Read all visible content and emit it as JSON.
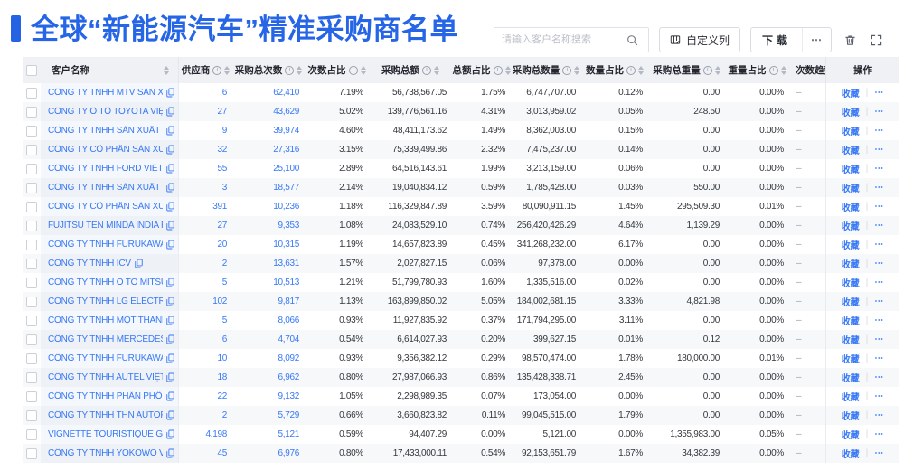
{
  "header": {
    "title": "全球“新能源汽车”精准采购商名单"
  },
  "toolbar": {
    "search_placeholder": "请输入客户名称搜索",
    "customize_columns_label": "自定义列",
    "download_label": "下载",
    "more_label": "⋯"
  },
  "colors": {
    "accent": "#2363e4",
    "link": "#3778f6"
  },
  "table": {
    "columns": [
      {
        "key": "select",
        "type": "checkbox",
        "label": ""
      },
      {
        "key": "customer-name",
        "label": "客户名称",
        "info": false,
        "sort": true
      },
      {
        "key": "suppliers",
        "label": "供应商",
        "info": true,
        "sort": true
      },
      {
        "key": "purchase-count",
        "label": "采购总次数",
        "info": true,
        "sort": true
      },
      {
        "key": "count-pct",
        "label": "次数占比",
        "info": true,
        "sort": true
      },
      {
        "key": "purchase-amount",
        "label": "采购总额",
        "info": true,
        "sort": true
      },
      {
        "key": "amount-pct",
        "label": "总额占比",
        "info": true,
        "sort": true
      },
      {
        "key": "purchase-qty",
        "label": "采购总数量",
        "info": true,
        "sort": true
      },
      {
        "key": "qty-pct",
        "label": "数量占比",
        "info": true,
        "sort": true
      },
      {
        "key": "purchase-weight",
        "label": "采购总重量",
        "info": true,
        "sort": true
      },
      {
        "key": "weight-pct",
        "label": "重量占比",
        "info": true,
        "sort": true
      },
      {
        "key": "count-trend",
        "label": "次数趋势",
        "info": false,
        "sort": false
      },
      {
        "key": "operations",
        "label": "操作",
        "info": false,
        "sort": false
      }
    ],
    "row_actions": {
      "favorite": "收藏",
      "separator": "|",
      "more": "⋯"
    },
    "rows": [
      {
        "name": "CÔNG TY TNHH MTV SẢN XUẤ...",
        "suppliers": "6",
        "purchase_count": "62,410",
        "count_pct": "7.19%",
        "purchase_amount": "56,738,567.05",
        "amount_pct": "1.75%",
        "purchase_qty": "6,747,707.00",
        "qty_pct": "0.12%",
        "purchase_weight": "0.00",
        "weight_pct": "0.00%",
        "trend": "–"
      },
      {
        "name": "CÔNG TY Ô TÔ TOYOTA VIỆT ...",
        "suppliers": "27",
        "purchase_count": "43,629",
        "count_pct": "5.02%",
        "purchase_amount": "139,776,561.16",
        "amount_pct": "4.31%",
        "purchase_qty": "3,013,959.02",
        "qty_pct": "0.05%",
        "purchase_weight": "248.50",
        "weight_pct": "0.00%",
        "trend": "–"
      },
      {
        "name": "CÔNG TY TNHH SẢN XUẤT VÀ ...",
        "suppliers": "9",
        "purchase_count": "39,974",
        "count_pct": "4.60%",
        "purchase_amount": "48,411,173.62",
        "amount_pct": "1.49%",
        "purchase_qty": "8,362,003.00",
        "qty_pct": "0.15%",
        "purchase_weight": "0.00",
        "weight_pct": "0.00%",
        "trend": "–"
      },
      {
        "name": "CÔNG TY CỔ PHẦN SẢN XUẤT...",
        "suppliers": "32",
        "purchase_count": "27,316",
        "count_pct": "3.15%",
        "purchase_amount": "75,339,499.86",
        "amount_pct": "2.32%",
        "purchase_qty": "7,475,237.00",
        "qty_pct": "0.14%",
        "purchase_weight": "0.00",
        "weight_pct": "0.00%",
        "trend": "–"
      },
      {
        "name": "CÔNG TY TNHH FORD VIỆT NAM",
        "suppliers": "55",
        "purchase_count": "25,100",
        "count_pct": "2.89%",
        "purchase_amount": "64,516,143.61",
        "amount_pct": "1.99%",
        "purchase_qty": "3,213,159.00",
        "qty_pct": "0.06%",
        "purchase_weight": "0.00",
        "weight_pct": "0.00%",
        "trend": "–"
      },
      {
        "name": "CÔNG TY TNHH SẢN XUẤT VÀ ...",
        "suppliers": "3",
        "purchase_count": "18,577",
        "count_pct": "2.14%",
        "purchase_amount": "19,040,834.12",
        "amount_pct": "0.59%",
        "purchase_qty": "1,785,428.00",
        "qty_pct": "0.03%",
        "purchase_weight": "550.00",
        "weight_pct": "0.00%",
        "trend": "–"
      },
      {
        "name": "CÔNG TY CỔ PHẦN SẢN XUẤT...",
        "suppliers": "391",
        "purchase_count": "10,236",
        "count_pct": "1.18%",
        "purchase_amount": "116,329,847.89",
        "amount_pct": "3.59%",
        "purchase_qty": "80,090,911.15",
        "qty_pct": "1.45%",
        "purchase_weight": "295,509.30",
        "weight_pct": "0.01%",
        "trend": "–"
      },
      {
        "name": "FUJITSU TEN MINDA INDIA PVT...",
        "suppliers": "27",
        "purchase_count": "9,353",
        "count_pct": "1.08%",
        "purchase_amount": "24,083,529.10",
        "amount_pct": "0.74%",
        "purchase_qty": "256,420,426.29",
        "qty_pct": "4.64%",
        "purchase_weight": "1,139.29",
        "weight_pct": "0.00%",
        "trend": "–"
      },
      {
        "name": "CÔNG TY TNHH FURUKAWA A...",
        "suppliers": "20",
        "purchase_count": "10,315",
        "count_pct": "1.19%",
        "purchase_amount": "14,657,823.89",
        "amount_pct": "0.45%",
        "purchase_qty": "341,268,232.00",
        "qty_pct": "6.17%",
        "purchase_weight": "0.00",
        "weight_pct": "0.00%",
        "trend": "–"
      },
      {
        "name": "CÔNG TY TNHH ICV",
        "suppliers": "2",
        "purchase_count": "13,631",
        "count_pct": "1.57%",
        "purchase_amount": "2,027,827.15",
        "amount_pct": "0.06%",
        "purchase_qty": "97,378.00",
        "qty_pct": "0.00%",
        "purchase_weight": "0.00",
        "weight_pct": "0.00%",
        "trend": "–"
      },
      {
        "name": "CÔNG TY TNHH Ô TÔ MITSUBI...",
        "suppliers": "5",
        "purchase_count": "10,513",
        "count_pct": "1.21%",
        "purchase_amount": "51,799,780.93",
        "amount_pct": "1.60%",
        "purchase_qty": "1,335,516.00",
        "qty_pct": "0.02%",
        "purchase_weight": "0.00",
        "weight_pct": "0.00%",
        "trend": "–"
      },
      {
        "name": "CÔNG TY TNHH LG ELECTRON...",
        "suppliers": "102",
        "purchase_count": "9,817",
        "count_pct": "1.13%",
        "purchase_amount": "163,899,850.02",
        "amount_pct": "5.05%",
        "purchase_qty": "184,002,681.15",
        "qty_pct": "3.33%",
        "purchase_weight": "4,821.98",
        "weight_pct": "0.00%",
        "trend": "–"
      },
      {
        "name": "CÔNG TY TNHH MỘT THÀNH V...",
        "suppliers": "5",
        "purchase_count": "8,066",
        "count_pct": "0.93%",
        "purchase_amount": "11,927,835.92",
        "amount_pct": "0.37%",
        "purchase_qty": "171,794,295.00",
        "qty_pct": "3.11%",
        "purchase_weight": "0.00",
        "weight_pct": "0.00%",
        "trend": "–"
      },
      {
        "name": "CÔNG TY TNHH MERCEDES–B...",
        "suppliers": "6",
        "purchase_count": "4,704",
        "count_pct": "0.54%",
        "purchase_amount": "6,614,027.93",
        "amount_pct": "0.20%",
        "purchase_qty": "399,627.15",
        "qty_pct": "0.01%",
        "purchase_weight": "0.12",
        "weight_pct": "0.00%",
        "trend": "–"
      },
      {
        "name": "CÔNG TY TNHH FURUKAWA A...",
        "suppliers": "10",
        "purchase_count": "8,092",
        "count_pct": "0.93%",
        "purchase_amount": "9,356,382.12",
        "amount_pct": "0.29%",
        "purchase_qty": "98,570,474.00",
        "qty_pct": "1.78%",
        "purchase_weight": "180,000.00",
        "weight_pct": "0.01%",
        "trend": "–"
      },
      {
        "name": "CÔNG TY TNHH AUTEL VIỆT N...",
        "suppliers": "18",
        "purchase_count": "6,962",
        "count_pct": "0.80%",
        "purchase_amount": "27,987,066.93",
        "amount_pct": "0.86%",
        "purchase_qty": "135,428,338.71",
        "qty_pct": "2.45%",
        "purchase_weight": "0.00",
        "weight_pct": "0.00%",
        "trend": "–"
      },
      {
        "name": "CÔNG TY TNHH PHÂN PHỐI T...",
        "suppliers": "22",
        "purchase_count": "9,132",
        "count_pct": "1.05%",
        "purchase_amount": "2,298,989.35",
        "amount_pct": "0.07%",
        "purchase_qty": "173,054.00",
        "qty_pct": "0.00%",
        "purchase_weight": "0.00",
        "weight_pct": "0.00%",
        "trend": "–"
      },
      {
        "name": "CÔNG TY TNHH THN AUTOPAR...",
        "suppliers": "2",
        "purchase_count": "5,729",
        "count_pct": "0.66%",
        "purchase_amount": "3,660,823.82",
        "amount_pct": "0.11%",
        "purchase_qty": "99,045,515.00",
        "qty_pct": "1.79%",
        "purchase_weight": "0.00",
        "weight_pct": "0.00%",
        "trend": "–"
      },
      {
        "name": "VIGNETTE TOURISTIQUE G UNI...",
        "suppliers": "4,198",
        "purchase_count": "5,121",
        "count_pct": "0.59%",
        "purchase_amount": "94,407.29",
        "amount_pct": "0.00%",
        "purchase_qty": "5,121.00",
        "qty_pct": "0.00%",
        "purchase_weight": "1,355,983.00",
        "weight_pct": "0.05%",
        "trend": "–"
      },
      {
        "name": "CÔNG TY TNHH YOKOWO VIỆT...",
        "suppliers": "45",
        "purchase_count": "6,976",
        "count_pct": "0.80%",
        "purchase_amount": "17,433,000.11",
        "amount_pct": "0.54%",
        "purchase_qty": "92,153,651.79",
        "qty_pct": "1.67%",
        "purchase_weight": "34,382.39",
        "weight_pct": "0.00%",
        "trend": "–"
      }
    ]
  }
}
